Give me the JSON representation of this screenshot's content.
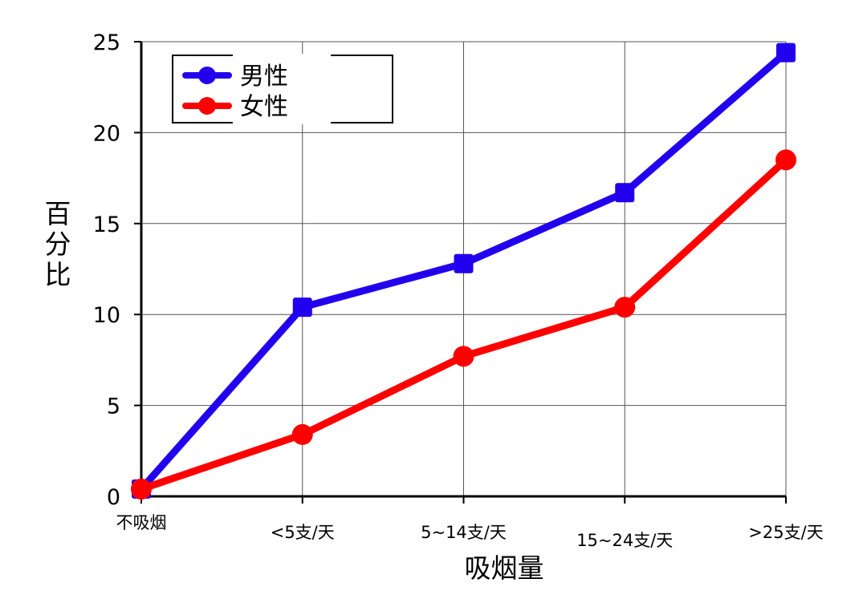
{
  "chart_data": {
    "type": "line",
    "categories": [
      "不吸烟",
      "<5支/天",
      "5~14支/天",
      "15~24支/天",
      ">25支/天"
    ],
    "series": [
      {
        "name": "男性",
        "color": "#2200ee",
        "marker": "square",
        "values": [
          0.4,
          10.4,
          12.8,
          16.7,
          24.4
        ]
      },
      {
        "name": "女性",
        "color": "#ff0000",
        "marker": "circle",
        "values": [
          0.4,
          3.4,
          7.7,
          10.4,
          18.5
        ]
      }
    ],
    "title": "",
    "xlabel": "吸烟量",
    "ylabel": "百分比",
    "ylim": [
      0,
      25
    ],
    "yticks": [
      0,
      5,
      10,
      15,
      20,
      25
    ],
    "grid": true,
    "legend_position": "top-left"
  }
}
